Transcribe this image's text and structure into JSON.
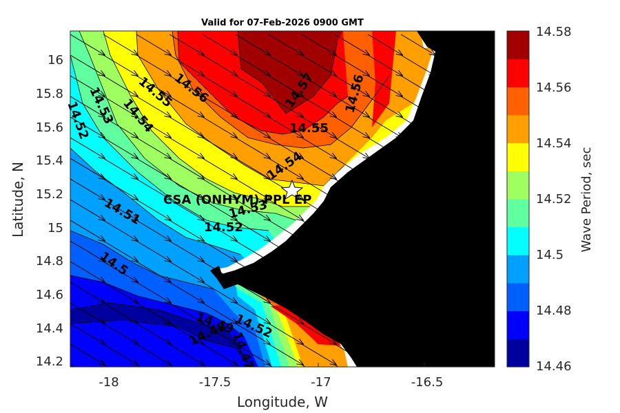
{
  "title": "Valid for 07-Feb-2026 0900 GMT",
  "xlabel": "Longitude, W",
  "ylabel": "Latitude, N",
  "colorbar_label": "Wave Period, sec",
  "site_label": "CSA (ONHYM) PPL EP",
  "x_ticks": [
    "-18",
    "-17.5",
    "-17",
    "-16.5"
  ],
  "y_ticks": [
    "14.2",
    "14.4",
    "14.6",
    "14.8",
    "15",
    "15.2",
    "15.4",
    "15.6",
    "15.8",
    "16"
  ],
  "colorbar_ticks": [
    "14.46",
    "14.48",
    "14.5",
    "14.52",
    "14.54",
    "14.56",
    "14.58"
  ],
  "contour_labels": [
    "14.52",
    "14.53",
    "14.54",
    "14.55",
    "14.56",
    "14.57",
    "14.56",
    "14.55",
    "14.54",
    "14.53",
    "14.52",
    "14.51",
    "14.5",
    "14.49",
    "14.48",
    "14.52",
    "14.47"
  ],
  "colors": {
    "land": "#000000",
    "shore": "#ffffff",
    "levels": [
      "#00009f",
      "#0000ff",
      "#0060ff",
      "#00a0ff",
      "#00ffff",
      "#60ffa0",
      "#a0ff60",
      "#ffff00",
      "#ffa000",
      "#ff6000",
      "#ff0000",
      "#a00000"
    ]
  },
  "chart_data": {
    "type": "heatmap",
    "variable": "Wave Period",
    "units": "sec",
    "xlim": [
      -18.2,
      -16.2
    ],
    "ylim": [
      14.17,
      16.17
    ],
    "clim": [
      14.46,
      14.58
    ],
    "levels": [
      14.46,
      14.47,
      14.48,
      14.49,
      14.5,
      14.51,
      14.52,
      14.53,
      14.54,
      14.55,
      14.56,
      14.57,
      14.58
    ],
    "site": {
      "name": "CSA (ONHYM) PPL EP",
      "lon": -17.1,
      "lat": 15.23
    },
    "contours": [
      {
        "value": 14.52,
        "lon": -18.15,
        "lat": 15.65
      },
      {
        "value": 14.53,
        "lon": -18.04,
        "lat": 15.7
      },
      {
        "value": 14.54,
        "lon": -17.85,
        "lat": 15.7
      },
      {
        "value": 14.55,
        "lon": -17.77,
        "lat": 15.83
      },
      {
        "value": 14.56,
        "lon": -17.57,
        "lat": 15.8
      },
      {
        "value": 14.57,
        "lon": -17.09,
        "lat": 15.83
      },
      {
        "value": 14.56,
        "lon": -16.8,
        "lat": 15.85
      },
      {
        "value": 14.55,
        "lon": -17.06,
        "lat": 15.56
      },
      {
        "value": 14.54,
        "lon": -17.1,
        "lat": 15.35
      },
      {
        "value": 14.53,
        "lon": -17.38,
        "lat": 15.1
      },
      {
        "value": 14.52,
        "lon": -17.45,
        "lat": 15.0
      },
      {
        "value": 14.51,
        "lon": -17.93,
        "lat": 15.09
      },
      {
        "value": 14.5,
        "lon": -17.93,
        "lat": 14.75
      },
      {
        "value": 14.49,
        "lon": -17.44,
        "lat": 14.45
      },
      {
        "value": 14.48,
        "lon": -17.5,
        "lat": 14.37
      },
      {
        "value": 14.52,
        "lon": -17.26,
        "lat": 14.43
      },
      {
        "value": 14.47,
        "lon": -17.37,
        "lat": 14.33
      }
    ]
  }
}
